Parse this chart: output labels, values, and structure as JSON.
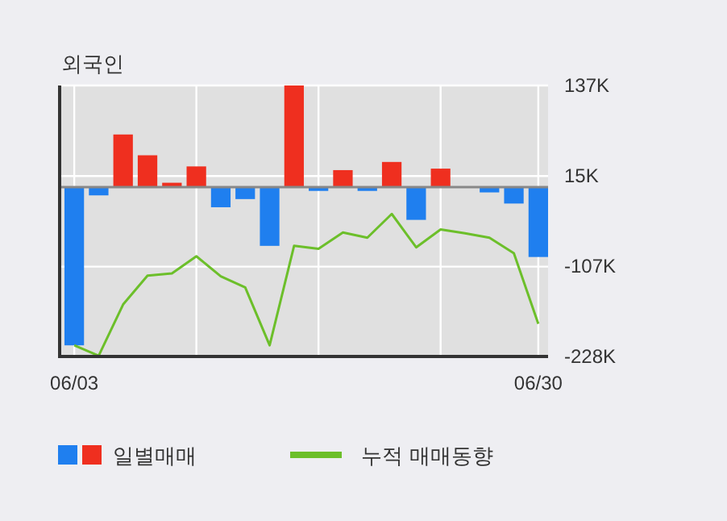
{
  "chart_data": {
    "type": "bar",
    "title": "외국인",
    "categories": [
      "06/03",
      null,
      null,
      null,
      null,
      null,
      null,
      null,
      null,
      null,
      null,
      null,
      null,
      null,
      null,
      null,
      null,
      null,
      null,
      "06/30"
    ],
    "series": [
      {
        "name": "일별매매",
        "colors": [
          "#1f7fef",
          "#1f7fef",
          "#ef2f1f",
          "#ef2f1f",
          "#ef2f1f",
          "#ef2f1f",
          "#1f7fef",
          "#1f7fef",
          "#1f7fef",
          "#ef2f1f",
          "#1f7fef",
          "#ef2f1f",
          "#1f7fef",
          "#ef2f1f",
          "#1f7fef",
          "#ef2f1f",
          "#1f7fef",
          "#1f7fef",
          "#1f7fef",
          "#1f7fef"
        ],
        "values": [
          -213000,
          -11000,
          71000,
          43000,
          6000,
          28000,
          -27000,
          -16000,
          -79000,
          137000,
          -5000,
          23000,
          -5000,
          34000,
          -44000,
          25000,
          0,
          -7000,
          -22000,
          -94000
        ]
      },
      {
        "name": "누적 매매동향",
        "type": "line",
        "color": "#6cbf2a",
        "values": [
          -213000,
          -227000,
          -158000,
          -119000,
          -116000,
          -93000,
          -120000,
          -135000,
          -213000,
          -79000,
          -83000,
          -61000,
          -68000,
          -36000,
          -81000,
          -57000,
          -62000,
          -68000,
          -89000,
          -184000
        ]
      }
    ],
    "ylim": [
      -228000,
      137000
    ],
    "yticks": [
      {
        "value": 137000,
        "label": "137K"
      },
      {
        "value": 15000,
        "label": "15K"
      },
      {
        "value": -107000,
        "label": "-107K"
      },
      {
        "value": -228000,
        "label": "-228K"
      }
    ],
    "grid": true,
    "legend": "bottom"
  }
}
